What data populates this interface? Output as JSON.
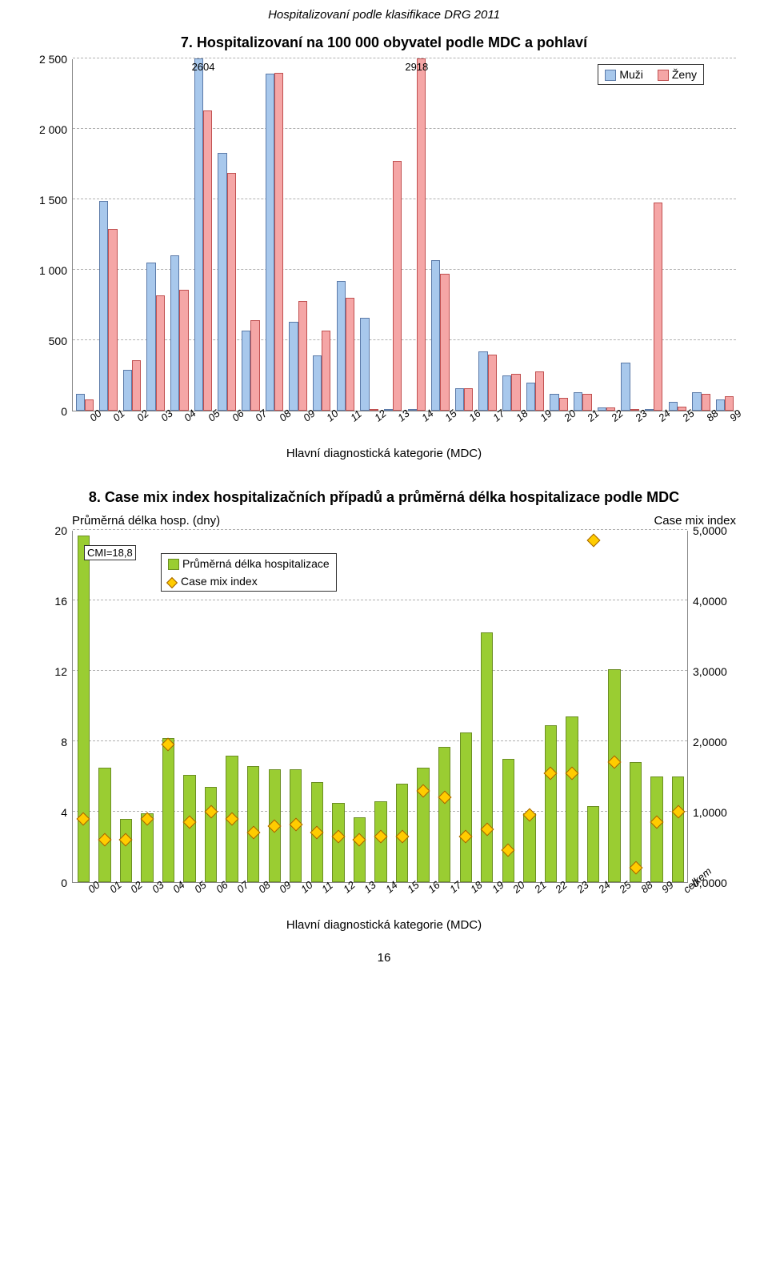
{
  "header": "Hospitalizovaní podle klasifikace DRG 2011",
  "footer_page": "16",
  "chart7": {
    "title": "7. Hospitalizovaní na 100 000 obyvatel podle MDC a pohlaví",
    "x_title": "Hlavní diagnostická kategorie (MDC)",
    "legend": {
      "men": "Muži",
      "women": "Ženy"
    },
    "colors": {
      "men_fill": "#a8c8ec",
      "men_border": "#5b7aa8",
      "women_fill": "#f5a6a6",
      "women_border": "#c05050",
      "grid": "#b0b0b0",
      "bg": "#ffffff"
    },
    "ylim": [
      0,
      2500
    ],
    "ytick_step": 500,
    "yticks": [
      "0",
      "500",
      "1 000",
      "1 500",
      "2 000",
      "2 500"
    ],
    "annotations": [
      {
        "cat": "05",
        "value": 2604,
        "label": "2604"
      },
      {
        "cat": "14",
        "value": 2918,
        "label": "2918"
      }
    ],
    "categories": [
      "00",
      "01",
      "02",
      "03",
      "04",
      "05",
      "06",
      "07",
      "08",
      "09",
      "10",
      "11",
      "12",
      "13",
      "14",
      "15",
      "16",
      "17",
      "18",
      "19",
      "20",
      "21",
      "22",
      "23",
      "24",
      "25",
      "88",
      "99"
    ],
    "men": [
      120,
      1490,
      290,
      1050,
      1100,
      2604,
      1830,
      570,
      2390,
      630,
      390,
      920,
      660,
      0,
      0,
      1070,
      160,
      420,
      250,
      200,
      120,
      130,
      20,
      340,
      0,
      60,
      130,
      80
    ],
    "women": [
      80,
      1290,
      360,
      820,
      860,
      2130,
      1690,
      640,
      2400,
      780,
      570,
      800,
      0,
      1770,
      2918,
      970,
      160,
      400,
      260,
      280,
      90,
      120,
      25,
      0,
      1480,
      30,
      120,
      100
    ],
    "bar_width": 0.38
  },
  "chart8": {
    "title": "8. Case mix index hospitalizačních případů a průměrná délka hospitalizace podle MDC",
    "x_title": "Hlavní diagnostická kategorie (MDC)",
    "left_axis_label": "Průměrná délka hosp. (dny)",
    "right_axis_label": "Case mix index",
    "legend": {
      "bar": "Průměrná délka hospitalizace",
      "marker": "Case mix index"
    },
    "cmi_box": "CMI=18,8",
    "colors": {
      "bar_fill": "#9acd32",
      "bar_border": "#6b8e23",
      "marker_fill": "#ffcc00",
      "marker_border": "#a06000",
      "grid": "#b0b0b0"
    },
    "ylim_left": [
      0,
      20
    ],
    "ytick_left_step": 4,
    "yticks_left": [
      "0",
      "4",
      "8",
      "12",
      "16",
      "20"
    ],
    "ylim_right": [
      0,
      5
    ],
    "ytick_right_step": 1,
    "yticks_right": [
      "0,0000",
      "1,0000",
      "2,0000",
      "3,0000",
      "4,0000",
      "5,0000"
    ],
    "categories": [
      "00",
      "01",
      "02",
      "03",
      "04",
      "05",
      "06",
      "07",
      "08",
      "09",
      "10",
      "11",
      "12",
      "13",
      "14",
      "15",
      "16",
      "17",
      "18",
      "19",
      "20",
      "21",
      "22",
      "23",
      "24",
      "25",
      "88",
      "99",
      "celkem"
    ],
    "bar": [
      19.7,
      6.5,
      3.6,
      3.9,
      8.2,
      6.1,
      5.4,
      7.2,
      6.6,
      6.4,
      6.4,
      5.7,
      4.5,
      3.7,
      4.6,
      5.6,
      6.5,
      7.7,
      8.5,
      14.2,
      7.0,
      3.9,
      8.9,
      9.4,
      4.3,
      12.1,
      6.8,
      6.0,
      6.0
    ],
    "cmi": [
      0.9,
      0.6,
      0.6,
      0.9,
      1.95,
      0.85,
      1.0,
      0.9,
      0.7,
      0.8,
      0.82,
      0.7,
      0.65,
      0.6,
      0.65,
      0.65,
      1.3,
      1.2,
      0.65,
      0.75,
      0.45,
      0.95,
      1.55,
      1.55,
      4.85,
      1.7,
      0.2,
      0.85,
      1.0
    ],
    "bar_width": 0.58
  }
}
